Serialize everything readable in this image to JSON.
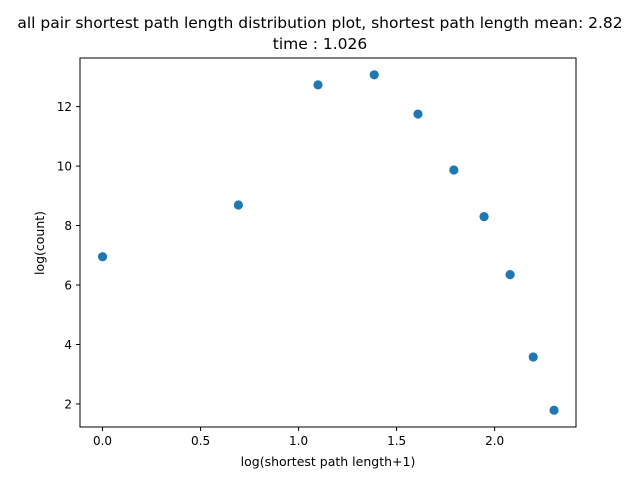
{
  "chart_data": {
    "type": "scatter",
    "title": "all pair shortest path length distribution plot, shortest path length mean: 2.82",
    "subtitle": "time : 1.026",
    "xlabel": "log(shortest path length+1)",
    "ylabel": "log(count)",
    "xlim": [
      -0.115,
      2.415
    ],
    "ylim": [
      1.225,
      13.635
    ],
    "xticks": [
      0.0,
      0.5,
      1.0,
      1.5,
      2.0
    ],
    "xtick_labels": [
      "0.0",
      "0.5",
      "1.0",
      "1.5",
      "2.0"
    ],
    "yticks": [
      2,
      4,
      6,
      8,
      10,
      12
    ],
    "ytick_labels": [
      "2",
      "4",
      "6",
      "8",
      "10",
      "12"
    ],
    "grid": false,
    "marker_color": "#1f77b4",
    "points": [
      {
        "x": 0.0,
        "y": 6.95
      },
      {
        "x": 0.693,
        "y": 8.69
      },
      {
        "x": 1.099,
        "y": 12.73
      },
      {
        "x": 1.386,
        "y": 13.07
      },
      {
        "x": 1.609,
        "y": 11.75
      },
      {
        "x": 1.792,
        "y": 9.87
      },
      {
        "x": 1.946,
        "y": 8.3
      },
      {
        "x": 2.079,
        "y": 6.35
      },
      {
        "x": 2.197,
        "y": 3.58
      },
      {
        "x": 2.303,
        "y": 1.79
      }
    ]
  }
}
